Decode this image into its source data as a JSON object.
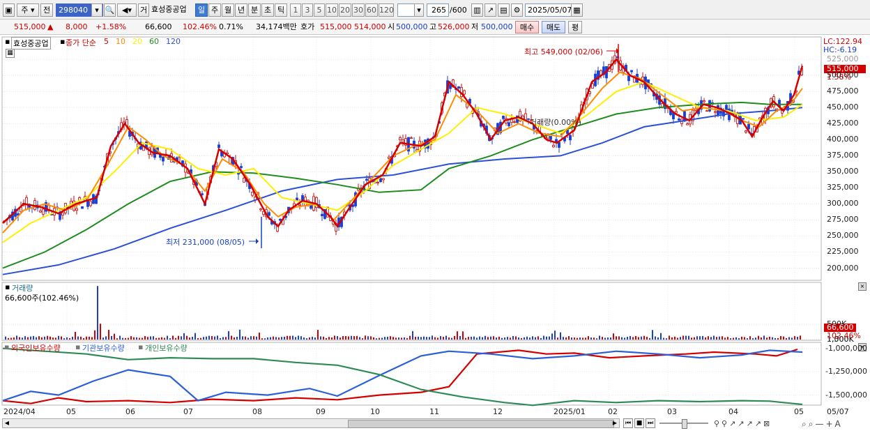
{
  "toolbar": {
    "period_type": "주",
    "prev_label": "전",
    "code": "298040",
    "trade_label": "거",
    "stock_name": "효성중공업",
    "period_buttons": [
      "일",
      "주",
      "월",
      "년",
      "분",
      "초",
      "틱"
    ],
    "active_period": "일",
    "minute_buttons": [
      "1",
      "3",
      "5",
      "10",
      "20",
      "30",
      "60",
      "120"
    ],
    "count_value": "265",
    "count_max": "/600",
    "date": "2025/05/07"
  },
  "quote": {
    "price": "515,000",
    "change_arrow": "▲",
    "change": "8,000",
    "change_pct": "+1.58%",
    "volume": "66,600",
    "volume_pct": "102.46%",
    "turnover_pct": "0.71%",
    "amount": "34,174백만",
    "hoga_label": "호가",
    "ask": "515,000",
    "bid": "514,000",
    "open_label": "시",
    "open": "500,000",
    "high_label": "고",
    "high": "526,000",
    "low_label": "저",
    "low": "500,000",
    "buy_label": "매수",
    "sell_label": "매도",
    "eval_label": "평"
  },
  "price_panel": {
    "legend": {
      "name": "효성중공업",
      "ma_label": "종가 단순",
      "ma_periods": [
        "5",
        "10",
        "20",
        "60",
        "120"
      ],
      "ma_colors": [
        "#d40000",
        "#ff8c00",
        "#ffee00",
        "#1e8c1e",
        "#2b4fd8"
      ]
    },
    "lc": "LC:122.94",
    "hc": "HC:-6.19",
    "current_tag": "515,000",
    "current_pct": "1.58%",
    "high_note": "최고 549,000 (02/06)",
    "low_note": "최저 231,000 (08/05)",
    "y_ticks": [
      "525,000",
      "500,000",
      "475,000",
      "450,000",
      "425,000",
      "400,000",
      "375,000",
      "350,000",
      "325,000",
      "300,000",
      "275,000",
      "250,000",
      "225,000",
      "200,000"
    ],
    "crosshair_label": "거래량(0.00%)"
  },
  "volume_panel": {
    "title": "거래량",
    "value": "66,600주(102.46%)",
    "y_ticks": [
      "1,500K",
      "1,000K",
      "500K"
    ],
    "current_tag": "66,600",
    "current_pct": "102.46%"
  },
  "holding_panel": {
    "legend": [
      "외국인보유수량",
      "기관보유수량",
      "개인보유수량"
    ],
    "legend_colors": [
      "#d40000",
      "#2b5fd8",
      "#2e8b57"
    ],
    "y_ticks": [
      "-1,000,000",
      "-1,250,000",
      "-1,500,000"
    ]
  },
  "x_axis": {
    "labels": [
      "2024/04",
      "05",
      "06",
      "07",
      "08",
      "09",
      "10",
      "11",
      "12",
      "2025/01",
      "02",
      "03",
      "04",
      "05",
      "05/07"
    ]
  },
  "chart_data": {
    "type": "line",
    "title": "",
    "x_range": [
      "2024/04",
      "2025/05/07"
    ],
    "ylim": [
      181000,
      560000
    ],
    "series": [
      {
        "name": "5",
        "color": "#d40000",
        "points": [
          [
            0,
            270000
          ],
          [
            30,
            300000
          ],
          [
            55,
            295000
          ],
          [
            80,
            285000
          ],
          [
            105,
            300000
          ],
          [
            135,
            310000
          ],
          [
            155,
            390000
          ],
          [
            175,
            425000
          ],
          [
            195,
            395000
          ],
          [
            215,
            380000
          ],
          [
            240,
            375000
          ],
          [
            265,
            355000
          ],
          [
            290,
            300000
          ],
          [
            310,
            385000
          ],
          [
            330,
            370000
          ],
          [
            355,
            330000
          ],
          [
            380,
            280000
          ],
          [
            395,
            265000
          ],
          [
            410,
            290000
          ],
          [
            430,
            305000
          ],
          [
            450,
            300000
          ],
          [
            470,
            280000
          ],
          [
            480,
            265000
          ],
          [
            495,
            290000
          ],
          [
            520,
            330000
          ],
          [
            545,
            345000
          ],
          [
            570,
            395000
          ],
          [
            600,
            390000
          ],
          [
            620,
            405000
          ],
          [
            640,
            490000
          ],
          [
            660,
            470000
          ],
          [
            680,
            440000
          ],
          [
            700,
            400000
          ],
          [
            720,
            430000
          ],
          [
            740,
            435000
          ],
          [
            760,
            425000
          ],
          [
            780,
            400000
          ],
          [
            795,
            395000
          ],
          [
            820,
            415000
          ],
          [
            845,
            490000
          ],
          [
            865,
            505000
          ],
          [
            880,
            525000
          ],
          [
            900,
            500000
          ],
          [
            920,
            490000
          ],
          [
            945,
            460000
          ],
          [
            965,
            440000
          ],
          [
            985,
            430000
          ],
          [
            1005,
            455000
          ],
          [
            1025,
            450000
          ],
          [
            1045,
            440000
          ],
          [
            1060,
            430000
          ],
          [
            1075,
            405000
          ],
          [
            1090,
            435000
          ],
          [
            1105,
            460000
          ],
          [
            1120,
            445000
          ],
          [
            1135,
            470000
          ],
          [
            1147,
            515000
          ]
        ]
      },
      {
        "name": "10",
        "color": "#ff8c00",
        "points": [
          [
            0,
            255000
          ],
          [
            30,
            290000
          ],
          [
            60,
            300000
          ],
          [
            90,
            290000
          ],
          [
            120,
            305000
          ],
          [
            150,
            360000
          ],
          [
            180,
            420000
          ],
          [
            205,
            400000
          ],
          [
            230,
            375000
          ],
          [
            260,
            360000
          ],
          [
            290,
            320000
          ],
          [
            315,
            370000
          ],
          [
            345,
            350000
          ],
          [
            375,
            300000
          ],
          [
            395,
            280000
          ],
          [
            420,
            295000
          ],
          [
            450,
            300000
          ],
          [
            475,
            275000
          ],
          [
            500,
            305000
          ],
          [
            530,
            340000
          ],
          [
            560,
            375000
          ],
          [
            590,
            390000
          ],
          [
            620,
            400000
          ],
          [
            650,
            470000
          ],
          [
            680,
            445000
          ],
          [
            710,
            410000
          ],
          [
            740,
            425000
          ],
          [
            770,
            410000
          ],
          [
            800,
            405000
          ],
          [
            830,
            440000
          ],
          [
            860,
            480000
          ],
          [
            885,
            505000
          ],
          [
            915,
            495000
          ],
          [
            945,
            470000
          ],
          [
            975,
            445000
          ],
          [
            1005,
            450000
          ],
          [
            1035,
            445000
          ],
          [
            1060,
            430000
          ],
          [
            1085,
            420000
          ],
          [
            1110,
            445000
          ],
          [
            1130,
            455000
          ],
          [
            1147,
            480000
          ]
        ]
      },
      {
        "name": "20",
        "color": "#ffee00",
        "points": [
          [
            0,
            240000
          ],
          [
            40,
            270000
          ],
          [
            80,
            290000
          ],
          [
            120,
            310000
          ],
          [
            160,
            350000
          ],
          [
            200,
            395000
          ],
          [
            240,
            385000
          ],
          [
            280,
            355000
          ],
          [
            320,
            345000
          ],
          [
            360,
            355000
          ],
          [
            400,
            310000
          ],
          [
            440,
            300000
          ],
          [
            480,
            290000
          ],
          [
            520,
            320000
          ],
          [
            560,
            360000
          ],
          [
            600,
            385000
          ],
          [
            640,
            410000
          ],
          [
            680,
            450000
          ],
          [
            720,
            440000
          ],
          [
            760,
            425000
          ],
          [
            800,
            410000
          ],
          [
            840,
            440000
          ],
          [
            880,
            475000
          ],
          [
            920,
            490000
          ],
          [
            960,
            470000
          ],
          [
            1000,
            450000
          ],
          [
            1040,
            445000
          ],
          [
            1080,
            430000
          ],
          [
            1120,
            435000
          ],
          [
            1147,
            455000
          ]
        ]
      },
      {
        "name": "60",
        "color": "#1e8c1e",
        "points": [
          [
            0,
            200000
          ],
          [
            60,
            225000
          ],
          [
            120,
            260000
          ],
          [
            180,
            300000
          ],
          [
            240,
            335000
          ],
          [
            300,
            350000
          ],
          [
            360,
            348000
          ],
          [
            420,
            340000
          ],
          [
            480,
            330000
          ],
          [
            540,
            318000
          ],
          [
            600,
            322000
          ],
          [
            640,
            355000
          ],
          [
            700,
            375000
          ],
          [
            760,
            400000
          ],
          [
            820,
            420000
          ],
          [
            880,
            440000
          ],
          [
            940,
            450000
          ],
          [
            1000,
            455000
          ],
          [
            1060,
            458000
          ],
          [
            1100,
            455000
          ],
          [
            1147,
            455000
          ]
        ]
      },
      {
        "name": "120",
        "color": "#2b4fd8",
        "points": [
          [
            0,
            190000
          ],
          [
            80,
            205000
          ],
          [
            160,
            230000
          ],
          [
            240,
            262000
          ],
          [
            320,
            290000
          ],
          [
            400,
            320000
          ],
          [
            480,
            338000
          ],
          [
            560,
            345000
          ],
          [
            640,
            362000
          ],
          [
            720,
            370000
          ],
          [
            800,
            375000
          ],
          [
            860,
            395000
          ],
          [
            920,
            420000
          ],
          [
            980,
            430000
          ],
          [
            1040,
            440000
          ],
          [
            1100,
            445000
          ],
          [
            1147,
            450000
          ]
        ]
      }
    ]
  }
}
